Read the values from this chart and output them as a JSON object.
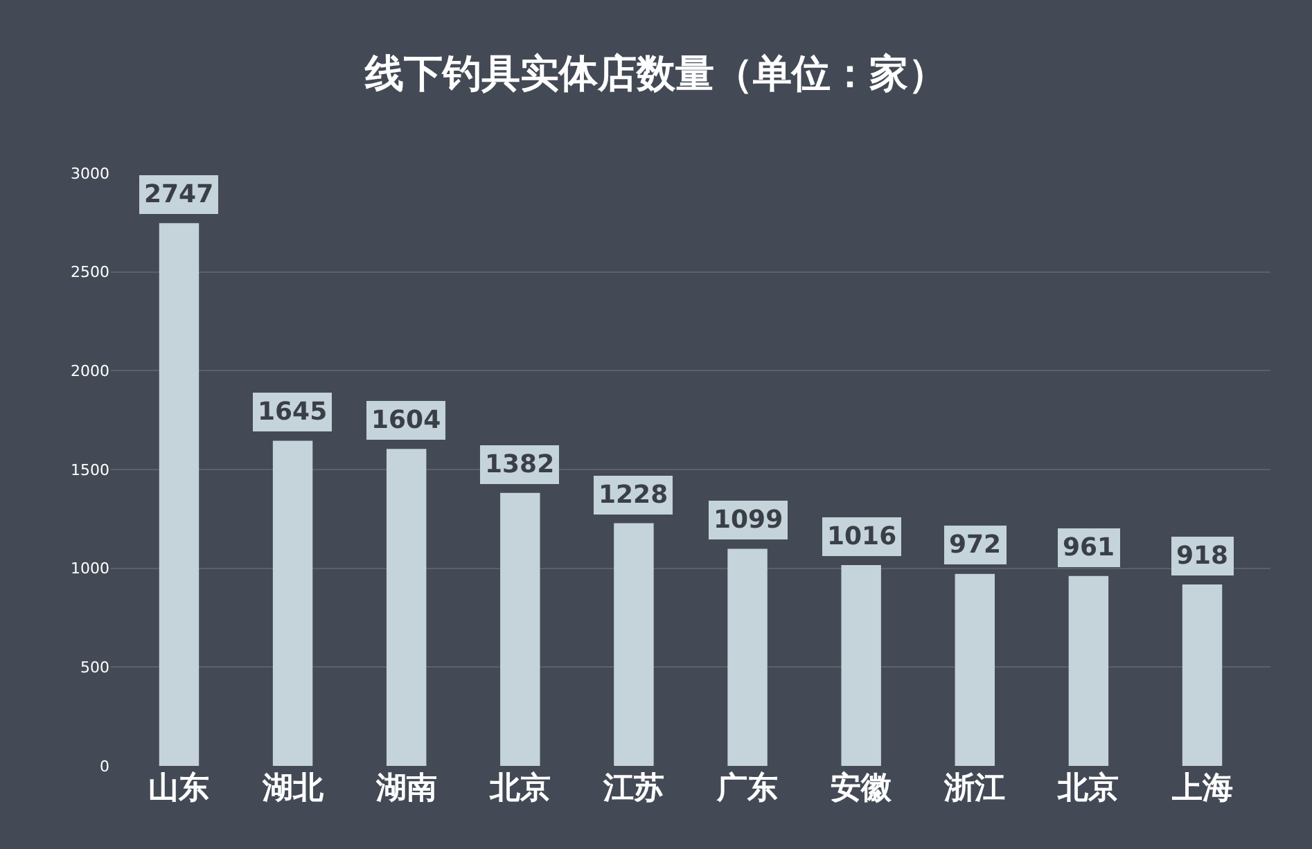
{
  "chart_data": {
    "type": "bar",
    "title": "线下钓具实体店数量（单位：家）",
    "categories": [
      "山东",
      "湖北",
      "湖南",
      "北京",
      "江苏",
      "广东",
      "安徽",
      "浙江",
      "北京",
      "上海"
    ],
    "values": [
      2747,
      1645,
      1604,
      1382,
      1228,
      1099,
      1016,
      972,
      961,
      918
    ],
    "color": "#c5d3da",
    "ylim": [
      0,
      3000
    ],
    "yticks": [
      0,
      500,
      1000,
      1500,
      2000,
      2500,
      3000
    ],
    "grid": "y",
    "data_labels": true
  }
}
